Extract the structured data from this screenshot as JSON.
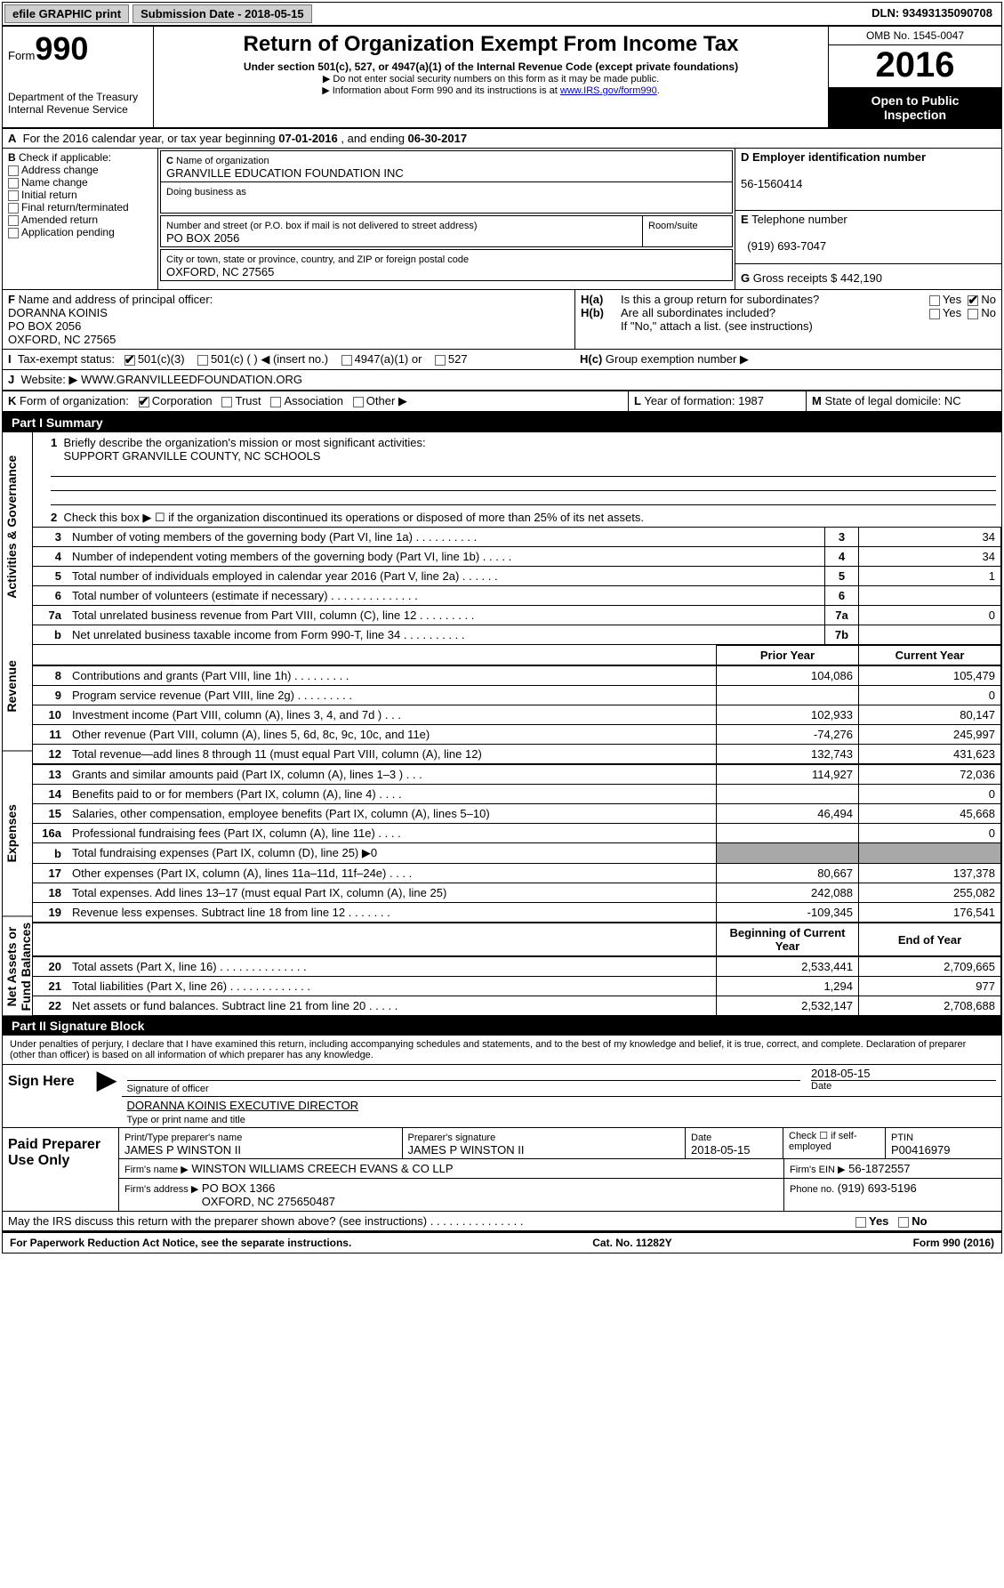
{
  "topbar": {
    "efile": "efile GRAPHIC print",
    "submission_label": "Submission Date - 2018-05-15",
    "dln": "DLN: 93493135090708"
  },
  "header": {
    "form_word": "Form",
    "form_no": "990",
    "dept": "Department of the Treasury",
    "irs": "Internal Revenue Service",
    "title": "Return of Organization Exempt From Income Tax",
    "subtitle": "Under section 501(c), 527, or 4947(a)(1) of the Internal Revenue Code (except private foundations)",
    "note1": "▶ Do not enter social security numbers on this form as it may be made public.",
    "note2_pre": "▶ Information about Form 990 and its instructions is at ",
    "note2_link": "www.IRS.gov/form990",
    "omb": "OMB No. 1545-0047",
    "year": "2016",
    "inspect1": "Open to Public",
    "inspect2": "Inspection"
  },
  "A": {
    "text_pre": "For the 2016 calendar year, or tax year beginning ",
    "begin": "07-01-2016",
    "mid": " , and ending ",
    "end": "06-30-2017"
  },
  "B": {
    "label": "Check if applicable:",
    "items": [
      "Address change",
      "Name change",
      "Initial return",
      "Final return/terminated",
      "Amended return",
      "Application pending"
    ]
  },
  "C": {
    "name_label": "Name of organization",
    "name": "GRANVILLE EDUCATION FOUNDATION INC",
    "dba_label": "Doing business as",
    "street_label": "Number and street (or P.O. box if mail is not delivered to street address)",
    "room_label": "Room/suite",
    "street": "PO BOX 2056",
    "city_label": "City or town, state or province, country, and ZIP or foreign postal code",
    "city": "OXFORD, NC  27565"
  },
  "D": {
    "label": "Employer identification number",
    "value": "56-1560414"
  },
  "E": {
    "label": "Telephone number",
    "value": "(919) 693-7047"
  },
  "G": {
    "label": "Gross receipts $ ",
    "value": "442,190"
  },
  "F": {
    "label": "Name and address of principal officer:",
    "line1": "DORANNA KOINIS",
    "line2": "PO BOX 2056",
    "line3": "OXFORD, NC  27565"
  },
  "H": {
    "a": "Is this a group return for subordinates?",
    "b": "Are all subordinates included?",
    "bnote": "If \"No,\" attach a list. (see instructions)",
    "c": "Group exemption number ▶",
    "yes": "Yes",
    "no": "No"
  },
  "I": {
    "label": "Tax-exempt status:",
    "opts": [
      "501(c)(3)",
      "501(c) (  ) ◀ (insert no.)",
      "4947(a)(1) or",
      "527"
    ]
  },
  "J": {
    "label": "Website: ▶",
    "value": "WWW.GRANVILLEEDFOUNDATION.ORG"
  },
  "K": {
    "label": "Form of organization:",
    "opts": [
      "Corporation",
      "Trust",
      "Association",
      "Other ▶"
    ]
  },
  "L": {
    "label": "Year of formation: ",
    "value": "1987"
  },
  "M": {
    "label": "State of legal domicile: ",
    "value": "NC"
  },
  "part1": {
    "title": "Part I    Summary",
    "vlabels": {
      "gov": "Activities & Governance",
      "rev": "Revenue",
      "exp": "Expenses",
      "net": "Net Assets or Fund Balances"
    },
    "l1": "Briefly describe the organization's mission or most significant activities:",
    "mission": "SUPPORT GRANVILLE COUNTY, NC SCHOOLS",
    "l2": "Check this box ▶ ☐ if the organization discontinued its operations or disposed of more than 25% of its net assets.",
    "lines_gov": [
      {
        "n": "3",
        "t": "Number of voting members of the governing body (Part VI, line 1a)  .  .  .  .  .  .  .  .  .  .",
        "v": "34"
      },
      {
        "n": "4",
        "t": "Number of independent voting members of the governing body (Part VI, line 1b)  .  .  .  .  .",
        "v": "34"
      },
      {
        "n": "5",
        "t": "Total number of individuals employed in calendar year 2016 (Part V, line 2a)  .  .  .  .  .  .",
        "v": "1"
      },
      {
        "n": "6",
        "t": "Total number of volunteers (estimate if necessary)  .  .  .  .  .  .  .  .  .  .  .  .  .  .",
        "v": ""
      },
      {
        "n": "7a",
        "t": "Total unrelated business revenue from Part VIII, column (C), line 12  .  .  .  .  .  .  .  .  .",
        "v": "0"
      },
      {
        "n": "b",
        "t": "Net unrelated business taxable income from Form 990-T, line 34  .  .  .  .  .  .  .  .  .  .",
        "v": "",
        "sn": "7b"
      }
    ],
    "hdr_prior": "Prior Year",
    "hdr_curr": "Current Year",
    "lines_rev": [
      {
        "n": "8",
        "t": "Contributions and grants (Part VIII, line 1h)  .  .  .  .  .  .  .  .  .",
        "p": "104,086",
        "c": "105,479"
      },
      {
        "n": "9",
        "t": "Program service revenue (Part VIII, line 2g)  .  .  .  .  .  .  .  .  .",
        "p": "",
        "c": "0"
      },
      {
        "n": "10",
        "t": "Investment income (Part VIII, column (A), lines 3, 4, and 7d )  .  .  .",
        "p": "102,933",
        "c": "80,147"
      },
      {
        "n": "11",
        "t": "Other revenue (Part VIII, column (A), lines 5, 6d, 8c, 9c, 10c, and 11e)",
        "p": "-74,276",
        "c": "245,997"
      },
      {
        "n": "12",
        "t": "Total revenue—add lines 8 through 11 (must equal Part VIII, column (A), line 12)",
        "p": "132,743",
        "c": "431,623"
      }
    ],
    "lines_exp": [
      {
        "n": "13",
        "t": "Grants and similar amounts paid (Part IX, column (A), lines 1–3 )  .  .  .",
        "p": "114,927",
        "c": "72,036"
      },
      {
        "n": "14",
        "t": "Benefits paid to or for members (Part IX, column (A), line 4)  .  .  .  .",
        "p": "",
        "c": "0"
      },
      {
        "n": "15",
        "t": "Salaries, other compensation, employee benefits (Part IX, column (A), lines 5–10)",
        "p": "46,494",
        "c": "45,668"
      },
      {
        "n": "16a",
        "t": "Professional fundraising fees (Part IX, column (A), line 11e)  .  .  .  .",
        "p": "",
        "c": "0"
      },
      {
        "n": "b",
        "t": "Total fundraising expenses (Part IX, column (D), line 25) ▶0",
        "p": "shade",
        "c": "shade"
      },
      {
        "n": "17",
        "t": "Other expenses (Part IX, column (A), lines 11a–11d, 11f–24e)  .  .  .  .",
        "p": "80,667",
        "c": "137,378"
      },
      {
        "n": "18",
        "t": "Total expenses. Add lines 13–17 (must equal Part IX, column (A), line 25)",
        "p": "242,088",
        "c": "255,082"
      },
      {
        "n": "19",
        "t": "Revenue less expenses. Subtract line 18 from line 12  .  .  .  .  .  .  .",
        "p": "-109,345",
        "c": "176,541"
      }
    ],
    "hdr_begin": "Beginning of Current Year",
    "hdr_end": "End of Year",
    "lines_net": [
      {
        "n": "20",
        "t": "Total assets (Part X, line 16)  .  .  .  .  .  .  .  .  .  .  .  .  .  .",
        "p": "2,533,441",
        "c": "2,709,665"
      },
      {
        "n": "21",
        "t": "Total liabilities (Part X, line 26)  .  .  .  .  .  .  .  .  .  .  .  .  .",
        "p": "1,294",
        "c": "977"
      },
      {
        "n": "22",
        "t": "Net assets or fund balances. Subtract line 21 from line 20 .  .  .  .  .",
        "p": "2,532,147",
        "c": "2,708,688"
      }
    ]
  },
  "part2": {
    "title": "Part II    Signature Block",
    "perjury": "Under penalties of perjury, I declare that I have examined this return, including accompanying schedules and statements, and to the best of my knowledge and belief, it is true, correct, and complete. Declaration of preparer (other than officer) is based on all information of which preparer has any knowledge.",
    "sign_here": "Sign Here",
    "sig_officer_label": "Signature of officer",
    "date_label": "Date",
    "sig_date": "2018-05-15",
    "name_title": "DORANNA KOINIS EXECUTIVE DIRECTOR",
    "name_title_label": "Type or print name and title",
    "paid": "Paid Preparer Use Only",
    "prep_name_label": "Print/Type preparer's name",
    "prep_name": "JAMES P WINSTON II",
    "prep_sig_label": "Preparer's signature",
    "prep_sig": "JAMES P WINSTON II",
    "prep_date_label": "Date",
    "prep_date": "2018-05-15",
    "self_emp": "Check ☐ if self-employed",
    "ptin_label": "PTIN",
    "ptin": "P00416979",
    "firm_name_label": "Firm's name    ▶",
    "firm_name": "WINSTON WILLIAMS CREECH EVANS & CO LLP",
    "firm_ein_label": "Firm's EIN ▶",
    "firm_ein": "56-1872557",
    "firm_addr_label": "Firm's address ▶",
    "firm_addr1": "PO BOX 1366",
    "firm_addr2": "OXFORD, NC  275650487",
    "phone_label": "Phone no.",
    "phone": "(919) 693-5196",
    "discuss": "May the IRS discuss this return with the preparer shown above? (see instructions)  .  .  .  .  .  .  .  .  .  .  .  .  .  .  .",
    "yes": "Yes",
    "no": "No"
  },
  "footer": {
    "left": "For Paperwork Reduction Act Notice, see the separate instructions.",
    "center": "Cat. No. 11282Y",
    "right": "Form 990 (2016)"
  }
}
